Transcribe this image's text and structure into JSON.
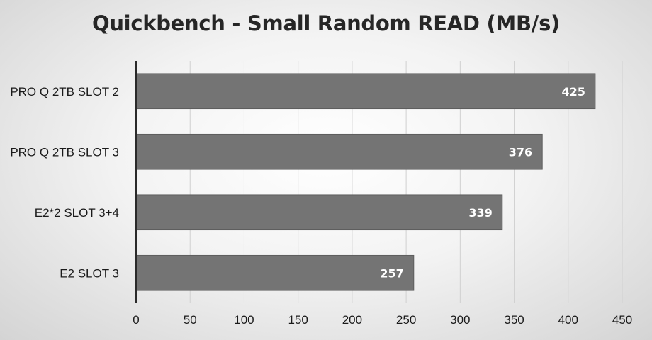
{
  "chart_data": {
    "type": "bar",
    "orientation": "horizontal",
    "title": "Quickbench - Small Random READ (MB/s)",
    "categories": [
      "PRO Q 2TB SLOT 2",
      "PRO Q 2TB SLOT 3",
      "E2*2 SLOT 3+4",
      "E2 SLOT 3"
    ],
    "values": [
      425,
      376,
      339,
      257
    ],
    "xlim": [
      0,
      450
    ],
    "x_ticks": [
      0,
      50,
      100,
      150,
      200,
      250,
      300,
      350,
      400,
      450
    ],
    "xlabel": "",
    "ylabel": "",
    "grid": "vertical",
    "legend": "none",
    "data_labels": "inside-end",
    "colors": {
      "bar": "#747474",
      "bar_edge": "#5e5e5e",
      "grid": "#d0d0d0",
      "axis": "#2a2a2a",
      "label": "#ffffff"
    }
  }
}
